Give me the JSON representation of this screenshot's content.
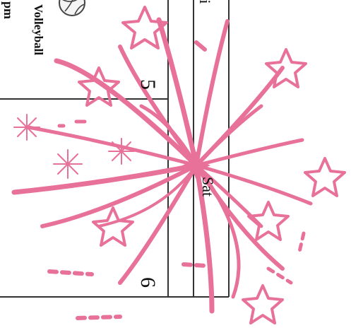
{
  "calendar": {
    "day_header": "Fri",
    "header_partial": "ri",
    "dates": [
      "5",
      "6"
    ],
    "sat_label": "Sat",
    "event": {
      "title": "Volleyball",
      "time_partial": "pm"
    }
  },
  "icons": {
    "ball": "volleyball-icon",
    "firework": "firework-burst-icon",
    "star": "star-outline-icon",
    "sparkle": "asterisk-sparkle-icon"
  },
  "colors": {
    "firework_pink": "#e8719a",
    "grid_line": "#333333",
    "text": "#111111"
  }
}
